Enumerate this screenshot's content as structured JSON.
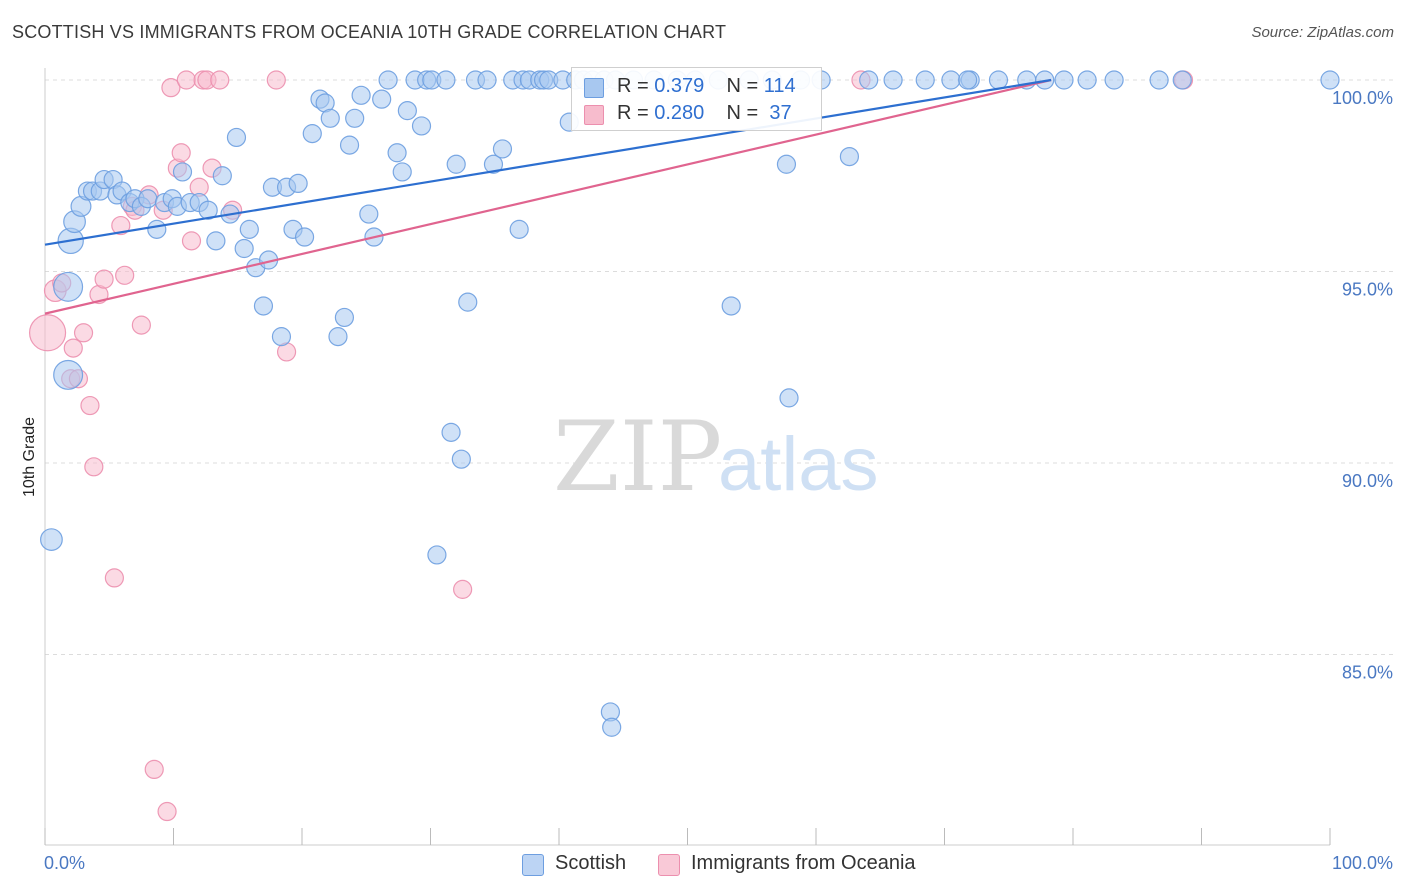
{
  "title": "SCOTTISH VS IMMIGRANTS FROM OCEANIA 10TH GRADE CORRELATION CHART",
  "source": "Source: ZipAtlas.com",
  "watermark": {
    "zip": "ZIP",
    "atlas": "atlas"
  },
  "legend": {
    "rows": [
      {
        "r_label": "R =",
        "r_value": "0.379",
        "n_label": "N =",
        "n_value": "114"
      },
      {
        "r_label": "R =",
        "r_value": "0.280",
        "n_label": "N =",
        "n_value": "37"
      }
    ]
  },
  "bottom_legend": {
    "series1": "Scottish",
    "series2": "Immigrants from Oceania"
  },
  "colors": {
    "scottish_fill": "#a8c8f0",
    "scottish_stroke": "#6d9ee0",
    "scottish_line": "#2d6fd0",
    "oceania_fill": "#f7bccd",
    "oceania_stroke": "#ec8fae",
    "oceania_line": "#e0648f",
    "grid": "#dcdcdc",
    "tick_text": "#4a78c2"
  },
  "chart_data": {
    "type": "scatter",
    "title": "SCOTTISH VS IMMIGRANTS FROM OCEANIA 10TH GRADE CORRELATION CHART",
    "xlabel": "",
    "ylabel": "10th Grade",
    "xlim": [
      0,
      100
    ],
    "ylim": [
      79.5,
      100.7
    ],
    "x_tick_labels": [
      "0.0%",
      "100.0%"
    ],
    "y_ticks": [
      100,
      95,
      90,
      85
    ],
    "y_tick_labels": [
      "100.0%",
      "95.0%",
      "90.0%",
      "85.0%"
    ],
    "series": [
      {
        "name": "Scottish",
        "R": 0.379,
        "N": 114,
        "trend": {
          "x": [
            0,
            78.3
          ],
          "y": [
            95.7,
            100.0
          ]
        },
        "points": [
          [
            1.8,
            92.3,
            1.6
          ],
          [
            1.8,
            94.6,
            1.6
          ],
          [
            0.5,
            88.0,
            1.2
          ],
          [
            2.0,
            95.8,
            1.4
          ],
          [
            2.3,
            96.3,
            1.2
          ],
          [
            2.8,
            96.7,
            1.1
          ],
          [
            3.3,
            97.1,
            1.0
          ],
          [
            3.7,
            97.1,
            1.0
          ],
          [
            4.3,
            97.1,
            1.0
          ],
          [
            4.6,
            97.4,
            1.0
          ],
          [
            5.3,
            97.4,
            1.0
          ],
          [
            5.6,
            97.0,
            1.0
          ],
          [
            6.0,
            97.1,
            1.0
          ],
          [
            6.6,
            96.8,
            1.0
          ],
          [
            7.0,
            96.9,
            1.0
          ],
          [
            7.5,
            96.7,
            1.0
          ],
          [
            8.0,
            96.9,
            1.0
          ],
          [
            8.7,
            96.1,
            1.0
          ],
          [
            9.3,
            96.8,
            1.0
          ],
          [
            9.9,
            96.9,
            1.0
          ],
          [
            10.3,
            96.7,
            1.0
          ],
          [
            10.7,
            97.6,
            1.0
          ],
          [
            11.3,
            96.8,
            1.0
          ],
          [
            12.0,
            96.8,
            1.0
          ],
          [
            12.7,
            96.6,
            1.0
          ],
          [
            13.3,
            95.8,
            1.0
          ],
          [
            13.8,
            97.5,
            1.0
          ],
          [
            14.4,
            96.5,
            1.0
          ],
          [
            14.9,
            98.5,
            1.0
          ],
          [
            15.5,
            95.6,
            1.0
          ],
          [
            15.9,
            96.1,
            1.0
          ],
          [
            16.4,
            95.1,
            1.0
          ],
          [
            17.0,
            94.1,
            1.0
          ],
          [
            17.4,
            95.3,
            1.0
          ],
          [
            17.7,
            97.2,
            1.0
          ],
          [
            18.4,
            93.3,
            1.0
          ],
          [
            18.8,
            97.2,
            1.0
          ],
          [
            19.3,
            96.1,
            1.0
          ],
          [
            19.7,
            97.3,
            1.0
          ],
          [
            20.2,
            95.9,
            1.0
          ],
          [
            20.8,
            98.6,
            1.0
          ],
          [
            21.4,
            99.5,
            1.0
          ],
          [
            21.8,
            99.4,
            1.0
          ],
          [
            22.2,
            99.0,
            1.0
          ],
          [
            22.8,
            93.3,
            1.0
          ],
          [
            23.3,
            93.8,
            1.0
          ],
          [
            23.7,
            98.3,
            1.0
          ],
          [
            24.1,
            99.0,
            1.0
          ],
          [
            24.6,
            99.6,
            1.0
          ],
          [
            25.2,
            96.5,
            1.0
          ],
          [
            25.6,
            95.9,
            1.0
          ],
          [
            26.2,
            99.5,
            1.0
          ],
          [
            26.7,
            100.0,
            1.0
          ],
          [
            27.4,
            98.1,
            1.0
          ],
          [
            27.8,
            97.6,
            1.0
          ],
          [
            28.2,
            99.2,
            1.0
          ],
          [
            28.8,
            100.0,
            1.0
          ],
          [
            29.3,
            98.8,
            1.0
          ],
          [
            29.7,
            100.0,
            1.0
          ],
          [
            30.1,
            100.0,
            1.0
          ],
          [
            30.5,
            87.6,
            1.0
          ],
          [
            31.2,
            100.0,
            1.0
          ],
          [
            31.6,
            90.8,
            1.0
          ],
          [
            32.0,
            97.8,
            1.0
          ],
          [
            32.4,
            90.1,
            1.0
          ],
          [
            32.9,
            94.2,
            1.0
          ],
          [
            33.5,
            100.0,
            1.0
          ],
          [
            34.4,
            100.0,
            1.0
          ],
          [
            34.9,
            97.8,
            1.0
          ],
          [
            35.6,
            98.2,
            1.0
          ],
          [
            36.4,
            100.0,
            1.0
          ],
          [
            36.9,
            96.1,
            1.0
          ],
          [
            37.2,
            100.0,
            1.0
          ],
          [
            37.7,
            100.0,
            1.0
          ],
          [
            38.5,
            100.0,
            1.0
          ],
          [
            38.8,
            100.0,
            1.0
          ],
          [
            39.2,
            100.0,
            1.0
          ],
          [
            40.3,
            100.0,
            1.0
          ],
          [
            40.8,
            98.9,
            1.0
          ],
          [
            41.3,
            100.0,
            1.0
          ],
          [
            41.9,
            100.0,
            1.0
          ],
          [
            42.6,
            100.0,
            1.0
          ],
          [
            43.5,
            100.0,
            1.0
          ],
          [
            44.4,
            100.0,
            1.0
          ],
          [
            44.0,
            83.5,
            1.0
          ],
          [
            44.1,
            83.1,
            1.0
          ],
          [
            45.8,
            100.0,
            1.0
          ],
          [
            47.4,
            100.0,
            1.0
          ],
          [
            49.2,
            100.0,
            1.0
          ],
          [
            50.6,
            100.0,
            1.0
          ],
          [
            52.4,
            100.0,
            1.0
          ],
          [
            53.4,
            94.1,
            1.0
          ],
          [
            54.8,
            100.0,
            1.0
          ],
          [
            56.6,
            100.0,
            1.0
          ],
          [
            57.7,
            97.8,
            1.0
          ],
          [
            57.9,
            91.7,
            1.0
          ],
          [
            58.8,
            100.0,
            1.0
          ],
          [
            60.4,
            100.0,
            1.0
          ],
          [
            62.6,
            98.0,
            1.0
          ],
          [
            64.1,
            100.0,
            1.0
          ],
          [
            66.0,
            100.0,
            1.0
          ],
          [
            68.5,
            100.0,
            1.0
          ],
          [
            70.5,
            100.0,
            1.0
          ],
          [
            72.0,
            100.0,
            1.0
          ],
          [
            74.2,
            100.0,
            1.0
          ],
          [
            76.4,
            100.0,
            1.0
          ],
          [
            77.8,
            100.0,
            1.0
          ],
          [
            79.3,
            100.0,
            1.0
          ],
          [
            81.1,
            100.0,
            1.0
          ],
          [
            83.2,
            100.0,
            1.0
          ],
          [
            86.7,
            100.0,
            1.0
          ],
          [
            88.5,
            100.0,
            1.0
          ],
          [
            100.0,
            100.0,
            1.0
          ],
          [
            71.8,
            100.0,
            1.0
          ]
        ]
      },
      {
        "name": "Immigrants from Oceania",
        "R": 0.28,
        "N": 37,
        "trend": {
          "x": [
            0,
            78.3
          ],
          "y": [
            93.9,
            100.0
          ]
        },
        "points": [
          [
            0.2,
            93.4,
            2.0
          ],
          [
            0.8,
            94.5,
            1.2
          ],
          [
            1.3,
            94.7,
            1.0
          ],
          [
            2.0,
            92.2,
            1.0
          ],
          [
            2.2,
            93.0,
            1.0
          ],
          [
            2.6,
            92.2,
            1.0
          ],
          [
            3.0,
            93.4,
            1.0
          ],
          [
            3.5,
            91.5,
            1.0
          ],
          [
            3.8,
            89.9,
            1.0
          ],
          [
            4.2,
            94.4,
            1.0
          ],
          [
            4.6,
            94.8,
            1.0
          ],
          [
            5.4,
            87.0,
            1.0
          ],
          [
            5.9,
            96.2,
            1.0
          ],
          [
            6.2,
            94.9,
            1.0
          ],
          [
            6.8,
            96.7,
            1.0
          ],
          [
            7.0,
            96.6,
            1.0
          ],
          [
            7.5,
            93.6,
            1.0
          ],
          [
            8.1,
            97.0,
            1.0
          ],
          [
            8.5,
            82.0,
            1.0
          ],
          [
            9.2,
            96.6,
            1.0
          ],
          [
            9.5,
            80.9,
            1.0
          ],
          [
            9.8,
            99.8,
            1.0
          ],
          [
            10.3,
            97.7,
            1.0
          ],
          [
            10.6,
            98.1,
            1.0
          ],
          [
            11.0,
            100.0,
            1.0
          ],
          [
            11.4,
            95.8,
            1.0
          ],
          [
            12.0,
            97.2,
            1.0
          ],
          [
            12.3,
            100.0,
            1.0
          ],
          [
            12.6,
            100.0,
            1.0
          ],
          [
            13.0,
            97.7,
            1.0
          ],
          [
            13.6,
            100.0,
            1.0
          ],
          [
            14.6,
            96.6,
            1.0
          ],
          [
            18.0,
            100.0,
            1.0
          ],
          [
            18.8,
            92.9,
            1.0
          ],
          [
            32.5,
            86.7,
            1.0
          ],
          [
            63.5,
            100.0,
            1.0
          ],
          [
            88.6,
            100.0,
            1.0
          ]
        ]
      }
    ]
  }
}
